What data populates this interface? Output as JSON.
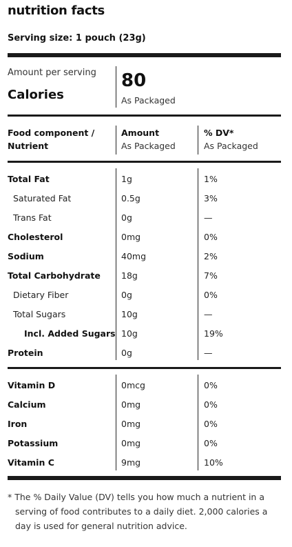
{
  "title": "nutrition facts",
  "serving_size": "Serving size: 1 pouch (23g)",
  "calories": {
    "amount_per_serving": "Amount per serving",
    "label": "Calories",
    "value": "80",
    "sub": "As Packaged"
  },
  "headers": {
    "component_line1": "Food component /",
    "component_line2": "Nutrient",
    "amount": "Amount",
    "amount_sub": "As Packaged",
    "dv": "% DV*",
    "dv_sub": "As Packaged"
  },
  "nutrients": [
    {
      "name": "Total Fat",
      "amount": "1g",
      "dv": "1%"
    },
    {
      "name": "Saturated Fat",
      "amount": "0.5g",
      "dv": "3%"
    },
    {
      "name": "Trans Fat",
      "amount": "0g",
      "dv": "—"
    },
    {
      "name": "Cholesterol",
      "amount": "0mg",
      "dv": "0%"
    },
    {
      "name": "Sodium",
      "amount": "40mg",
      "dv": "2%"
    },
    {
      "name": "Total Carbohydrate",
      "amount": "18g",
      "dv": "7%"
    },
    {
      "name": "Dietary Fiber",
      "amount": "0g",
      "dv": "0%"
    },
    {
      "name": "Total Sugars",
      "amount": "10g",
      "dv": "—"
    },
    {
      "name": "Incl. Added Sugars",
      "amount": "10g",
      "dv": "19%"
    },
    {
      "name": "Protein",
      "amount": "0g",
      "dv": "—"
    }
  ],
  "vitamins": [
    {
      "name": "Vitamin D",
      "amount": "0mcg",
      "dv": "0%"
    },
    {
      "name": "Calcium",
      "amount": "0mg",
      "dv": "0%"
    },
    {
      "name": "Iron",
      "amount": "0mg",
      "dv": "0%"
    },
    {
      "name": "Potassium",
      "amount": "0mg",
      "dv": "0%"
    },
    {
      "name": "Vitamin C",
      "amount": "9mg",
      "dv": "10%"
    }
  ],
  "footnote": {
    "line1": "* The % Daily Value (DV) tells you how much a nutrient in a",
    "line2": "serving of food contributes to a daily diet. 2,000 calories a",
    "line3": "day is used for general nutrition advice."
  }
}
